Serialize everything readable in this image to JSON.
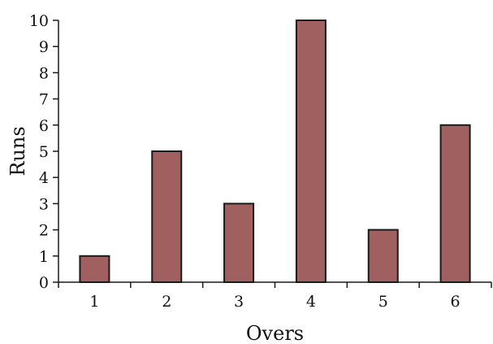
{
  "chart_data": {
    "type": "bar",
    "title": "",
    "xlabel": "Overs",
    "ylabel": "Runs",
    "categories": [
      "1",
      "2",
      "3",
      "4",
      "5",
      "6"
    ],
    "values": [
      1,
      5,
      3,
      10,
      2,
      6
    ],
    "ylim": [
      0,
      10
    ],
    "yticks": [
      "0",
      "1",
      "2",
      "3",
      "4",
      "5",
      "6",
      "7",
      "8",
      "9",
      "10"
    ],
    "grid": false,
    "legend": "none",
    "bar_color": "#a06060",
    "bar_edge_color": "#1a1a1a"
  }
}
